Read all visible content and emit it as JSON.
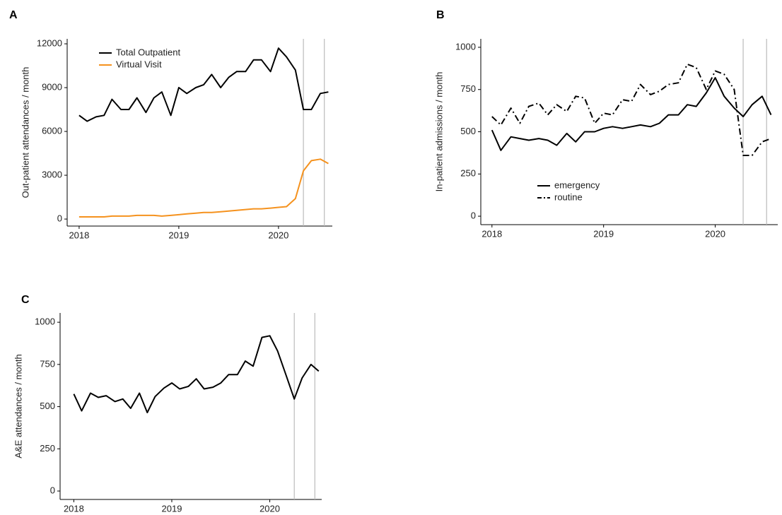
{
  "chart_data": [
    {
      "type": "line",
      "panel": "A",
      "ylabel": "Out-patient attendances / month",
      "x": [
        2018,
        2018.08,
        2018.17,
        2018.25,
        2018.33,
        2018.42,
        2018.5,
        2018.58,
        2018.67,
        2018.75,
        2018.83,
        2018.92,
        2019,
        2019.08,
        2019.17,
        2019.25,
        2019.33,
        2019.42,
        2019.5,
        2019.58,
        2019.67,
        2019.75,
        2019.83,
        2019.92,
        2020,
        2020.08,
        2020.17,
        2020.25,
        2020.33,
        2020.42,
        2020.5
      ],
      "series": [
        {
          "name": "Total Outpatient",
          "color": "#000000",
          "dash": false,
          "values": [
            7100,
            6700,
            7000,
            7100,
            8200,
            7500,
            7500,
            8300,
            7300,
            8300,
            8700,
            7100,
            9000,
            8600,
            9000,
            9200,
            9900,
            9000,
            9700,
            10100,
            10100,
            10900,
            10900,
            10100,
            11700,
            11100,
            10200,
            7500,
            7500,
            8600,
            8700
          ]
        },
        {
          "name": "Virtual Visit",
          "color": "#f5921e",
          "dash": false,
          "values": [
            150,
            150,
            150,
            150,
            200,
            200,
            200,
            250,
            250,
            250,
            200,
            250,
            300,
            350,
            400,
            450,
            450,
            500,
            550,
            600,
            650,
            700,
            700,
            750,
            800,
            850,
            1400,
            3300,
            4000,
            4100,
            3800
          ]
        }
      ],
      "vlines": [
        2020.25,
        2020.46
      ],
      "xlim": [
        2017.88,
        2020.54
      ],
      "xticks": [
        2018,
        2019,
        2020
      ],
      "ylim": [
        -480,
        12340
      ],
      "yticks": [
        0,
        3000,
        6000,
        9000,
        12000
      ],
      "legend": "upper left"
    },
    {
      "type": "line",
      "panel": "B",
      "ylabel": "In-patient admissions / month",
      "x": [
        2018,
        2018.08,
        2018.17,
        2018.25,
        2018.33,
        2018.42,
        2018.5,
        2018.58,
        2018.67,
        2018.75,
        2018.83,
        2018.92,
        2019,
        2019.08,
        2019.17,
        2019.25,
        2019.33,
        2019.42,
        2019.5,
        2019.58,
        2019.67,
        2019.75,
        2019.83,
        2019.92,
        2020,
        2020.08,
        2020.17,
        2020.25,
        2020.33,
        2020.42,
        2020.5
      ],
      "series": [
        {
          "name": "emergency",
          "color": "#000000",
          "dash": false,
          "values": [
            510,
            390,
            470,
            460,
            450,
            460,
            450,
            420,
            490,
            440,
            500,
            500,
            520,
            530,
            520,
            530,
            540,
            530,
            550,
            600,
            600,
            660,
            650,
            730,
            820,
            710,
            640,
            590,
            660,
            710,
            600
          ]
        },
        {
          "name": "routine",
          "color": "#000000",
          "dash": true,
          "values": [
            590,
            540,
            640,
            550,
            650,
            670,
            600,
            660,
            620,
            710,
            700,
            550,
            610,
            600,
            690,
            680,
            780,
            720,
            740,
            780,
            790,
            900,
            880,
            750,
            860,
            840,
            750,
            360,
            360,
            440,
            460
          ]
        }
      ],
      "vlines": [
        2020.25,
        2020.46
      ],
      "xlim": [
        2017.9,
        2020.56
      ],
      "xticks": [
        2018,
        2019,
        2020
      ],
      "ylim": [
        -50,
        1050
      ],
      "yticks": [
        0,
        250,
        500,
        750,
        1000
      ],
      "legend": "lower left"
    },
    {
      "type": "line",
      "panel": "C",
      "ylabel": "A&E attendances / month",
      "x": [
        2018,
        2018.08,
        2018.17,
        2018.25,
        2018.33,
        2018.42,
        2018.5,
        2018.58,
        2018.67,
        2018.75,
        2018.83,
        2018.92,
        2019,
        2019.08,
        2019.17,
        2019.25,
        2019.33,
        2019.42,
        2019.5,
        2019.58,
        2019.67,
        2019.75,
        2019.83,
        2019.92,
        2020,
        2020.08,
        2020.17,
        2020.25,
        2020.33,
        2020.42,
        2020.5
      ],
      "series": [
        {
          "color": "#000000",
          "dash": false,
          "values": [
            575,
            475,
            580,
            555,
            565,
            530,
            545,
            490,
            580,
            465,
            560,
            610,
            640,
            605,
            620,
            665,
            605,
            615,
            640,
            690,
            690,
            770,
            740,
            910,
            920,
            830,
            680,
            545,
            670,
            750,
            710
          ]
        }
      ],
      "vlines": [
        2020.25,
        2020.46
      ],
      "xlim": [
        2017.86,
        2020.53
      ],
      "xticks": [
        2018,
        2019,
        2020
      ],
      "ylim": [
        -50,
        1055
      ],
      "yticks": [
        0,
        250,
        500,
        750,
        1000
      ]
    }
  ]
}
